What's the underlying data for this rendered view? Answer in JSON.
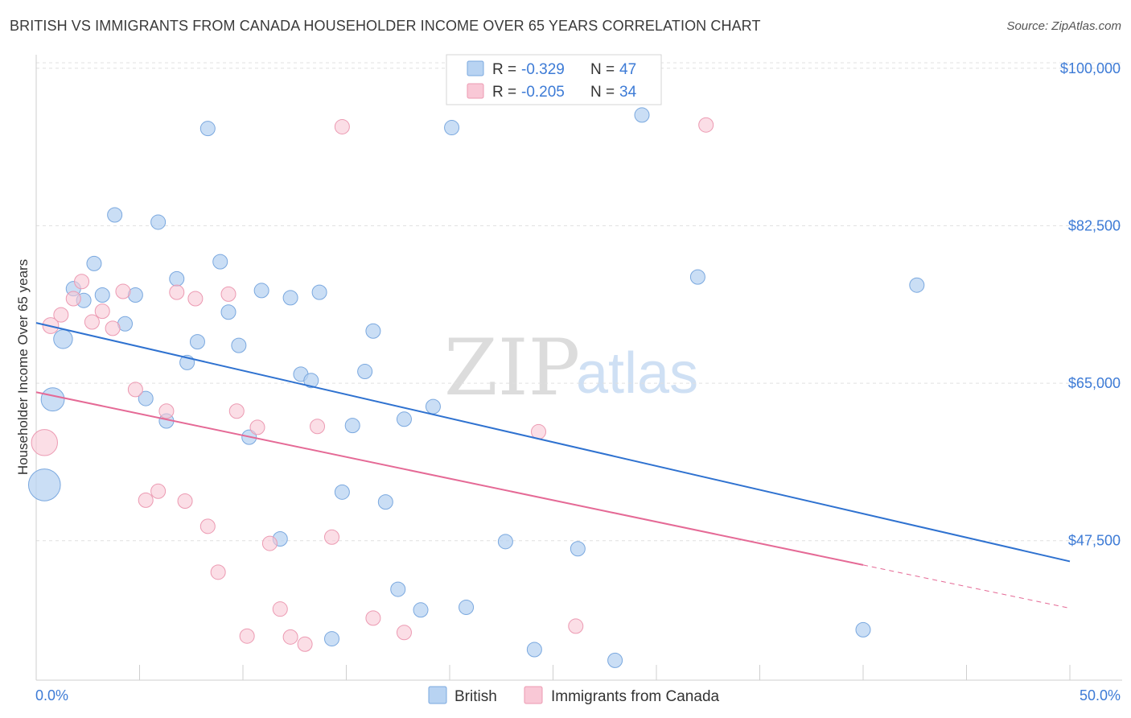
{
  "title": "BRITISH VS IMMIGRANTS FROM CANADA HOUSEHOLDER INCOME OVER 65 YEARS CORRELATION CHART",
  "source": "Source: ZipAtlas.com",
  "watermark": {
    "zip": "ZIP",
    "atlas": "atlas"
  },
  "colors": {
    "british_fill": "#b8d3f2",
    "british_stroke": "#7aa8df",
    "british_line": "#2f72d0",
    "canada_fill": "#f9c8d6",
    "canada_stroke": "#ec9ab2",
    "canada_line": "#e56a96",
    "axis_label": "#3d7bd6",
    "grid": "#e0e0e0"
  },
  "legend": {
    "rows": [
      {
        "r_label": "R =",
        "r_value": "-0.329",
        "n_label": "N =",
        "n_value": "47"
      },
      {
        "r_label": "R =",
        "r_value": "-0.205",
        "n_label": "N =",
        "n_value": "34"
      }
    ]
  },
  "bottom_legend": [
    "British",
    "Immigrants from Canada"
  ],
  "chart_data": {
    "type": "scatter",
    "title": "BRITISH VS IMMIGRANTS FROM CANADA HOUSEHOLDER INCOME OVER 65 YEARS CORRELATION CHART",
    "xlabel": "",
    "ylabel": "Householder Income Over 65 years",
    "xlim": [
      0,
      50
    ],
    "ylim": [
      32000,
      101500
    ],
    "x_tick_labels": [
      {
        "value": 0,
        "label": "0.0%"
      },
      {
        "value": 50,
        "label": "50.0%"
      }
    ],
    "y_ticks": [
      {
        "value": 100000,
        "label": "$100,000"
      },
      {
        "value": 82500,
        "label": "$82,500"
      },
      {
        "value": 65000,
        "label": "$65,000"
      },
      {
        "value": 47500,
        "label": "$47,500"
      }
    ],
    "x_minor_ticks": [
      5,
      10,
      15,
      20,
      25,
      30,
      35,
      40,
      45,
      50
    ],
    "series": [
      {
        "name": "British",
        "R": -0.329,
        "N": 47,
        "trend": {
          "x0": 0,
          "y0": 71700,
          "x1": 50,
          "y1": 45200,
          "solid_until": 50
        },
        "points": [
          {
            "x": 0.4,
            "y": 53700,
            "s": 2.2
          },
          {
            "x": 0.8,
            "y": 63200,
            "s": 1.6
          },
          {
            "x": 1.3,
            "y": 69900,
            "s": 1.3
          },
          {
            "x": 1.8,
            "y": 75500,
            "s": 1
          },
          {
            "x": 2.3,
            "y": 74200,
            "s": 1
          },
          {
            "x": 2.8,
            "y": 78300,
            "s": 1
          },
          {
            "x": 3.2,
            "y": 74800,
            "s": 1
          },
          {
            "x": 3.8,
            "y": 83700,
            "s": 1
          },
          {
            "x": 4.3,
            "y": 71600,
            "s": 1
          },
          {
            "x": 4.8,
            "y": 74800,
            "s": 1
          },
          {
            "x": 5.3,
            "y": 63300,
            "s": 1
          },
          {
            "x": 5.9,
            "y": 82900,
            "s": 1
          },
          {
            "x": 6.3,
            "y": 60800,
            "s": 1
          },
          {
            "x": 6.8,
            "y": 76600,
            "s": 1
          },
          {
            "x": 7.3,
            "y": 67300,
            "s": 1
          },
          {
            "x": 7.8,
            "y": 69600,
            "s": 1
          },
          {
            "x": 8.3,
            "y": 93300,
            "s": 1
          },
          {
            "x": 8.9,
            "y": 78500,
            "s": 1
          },
          {
            "x": 9.3,
            "y": 72900,
            "s": 1
          },
          {
            "x": 9.8,
            "y": 69200,
            "s": 1
          },
          {
            "x": 10.3,
            "y": 59000,
            "s": 1
          },
          {
            "x": 10.9,
            "y": 75300,
            "s": 1
          },
          {
            "x": 11.8,
            "y": 47700,
            "s": 1
          },
          {
            "x": 12.3,
            "y": 74500,
            "s": 1
          },
          {
            "x": 12.8,
            "y": 66000,
            "s": 1
          },
          {
            "x": 13.3,
            "y": 65300,
            "s": 1
          },
          {
            "x": 13.7,
            "y": 75100,
            "s": 1
          },
          {
            "x": 14.3,
            "y": 36600,
            "s": 1
          },
          {
            "x": 14.8,
            "y": 52900,
            "s": 1
          },
          {
            "x": 15.3,
            "y": 60300,
            "s": 1
          },
          {
            "x": 15.9,
            "y": 66300,
            "s": 1
          },
          {
            "x": 16.3,
            "y": 70800,
            "s": 1
          },
          {
            "x": 16.9,
            "y": 51800,
            "s": 1
          },
          {
            "x": 17.5,
            "y": 42100,
            "s": 1
          },
          {
            "x": 17.8,
            "y": 61000,
            "s": 1
          },
          {
            "x": 18.6,
            "y": 39800,
            "s": 1
          },
          {
            "x": 19.2,
            "y": 62400,
            "s": 1
          },
          {
            "x": 20.1,
            "y": 93400,
            "s": 1
          },
          {
            "x": 20.8,
            "y": 40100,
            "s": 1
          },
          {
            "x": 22.7,
            "y": 47400,
            "s": 1
          },
          {
            "x": 24.1,
            "y": 35400,
            "s": 1
          },
          {
            "x": 26.2,
            "y": 46600,
            "s": 1
          },
          {
            "x": 28.0,
            "y": 34200,
            "s": 1
          },
          {
            "x": 29.3,
            "y": 94800,
            "s": 1
          },
          {
            "x": 32.0,
            "y": 76800,
            "s": 1
          },
          {
            "x": 40.0,
            "y": 37600,
            "s": 1
          },
          {
            "x": 42.6,
            "y": 75900,
            "s": 1
          }
        ]
      },
      {
        "name": "Immigrants from Canada",
        "R": -0.205,
        "N": 34,
        "trend": {
          "x0": 0,
          "y0": 64000,
          "x1": 50,
          "y1": 40000,
          "solid_until": 40
        },
        "points": [
          {
            "x": 0.4,
            "y": 58400,
            "s": 1.8
          },
          {
            "x": 0.7,
            "y": 71400,
            "s": 1.1
          },
          {
            "x": 1.2,
            "y": 72600,
            "s": 1
          },
          {
            "x": 1.8,
            "y": 74400,
            "s": 1
          },
          {
            "x": 2.2,
            "y": 76300,
            "s": 1
          },
          {
            "x": 2.7,
            "y": 71800,
            "s": 1
          },
          {
            "x": 3.2,
            "y": 73000,
            "s": 1
          },
          {
            "x": 3.7,
            "y": 71100,
            "s": 1
          },
          {
            "x": 4.2,
            "y": 75200,
            "s": 1
          },
          {
            "x": 4.8,
            "y": 64300,
            "s": 1
          },
          {
            "x": 5.3,
            "y": 52000,
            "s": 1
          },
          {
            "x": 5.9,
            "y": 53000,
            "s": 1
          },
          {
            "x": 6.3,
            "y": 61900,
            "s": 1
          },
          {
            "x": 6.8,
            "y": 75100,
            "s": 1
          },
          {
            "x": 7.2,
            "y": 51900,
            "s": 1
          },
          {
            "x": 7.7,
            "y": 74400,
            "s": 1
          },
          {
            "x": 8.3,
            "y": 49100,
            "s": 1
          },
          {
            "x": 8.8,
            "y": 44000,
            "s": 1
          },
          {
            "x": 9.3,
            "y": 74900,
            "s": 1
          },
          {
            "x": 9.7,
            "y": 61900,
            "s": 1
          },
          {
            "x": 10.2,
            "y": 36900,
            "s": 1
          },
          {
            "x": 10.7,
            "y": 60100,
            "s": 1
          },
          {
            "x": 11.3,
            "y": 47200,
            "s": 1
          },
          {
            "x": 11.8,
            "y": 39900,
            "s": 1
          },
          {
            "x": 12.3,
            "y": 36800,
            "s": 1
          },
          {
            "x": 13.0,
            "y": 36000,
            "s": 1
          },
          {
            "x": 13.6,
            "y": 60200,
            "s": 1
          },
          {
            "x": 14.3,
            "y": 47900,
            "s": 1
          },
          {
            "x": 14.8,
            "y": 93500,
            "s": 1
          },
          {
            "x": 16.3,
            "y": 38900,
            "s": 1
          },
          {
            "x": 17.8,
            "y": 37300,
            "s": 1
          },
          {
            "x": 24.3,
            "y": 59600,
            "s": 1
          },
          {
            "x": 26.1,
            "y": 38000,
            "s": 1
          },
          {
            "x": 32.4,
            "y": 93700,
            "s": 1
          }
        ]
      }
    ]
  }
}
